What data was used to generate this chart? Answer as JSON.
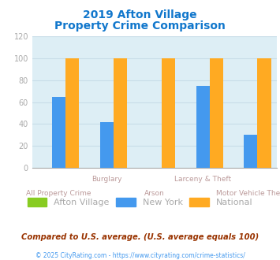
{
  "title_line1": "2019 Afton Village",
  "title_line2": "Property Crime Comparison",
  "categories": [
    "All Property Crime",
    "Burglary",
    "Arson",
    "Larceny & Theft",
    "Motor Vehicle Theft"
  ],
  "afton_village": [
    0,
    0,
    0,
    0,
    0
  ],
  "new_york": [
    65,
    42,
    0,
    75,
    30
  ],
  "national": [
    100,
    100,
    100,
    100,
    100
  ],
  "colors": {
    "afton_village": "#88cc22",
    "new_york": "#4499ee",
    "national": "#ffaa22"
  },
  "ylim": [
    0,
    120
  ],
  "yticks": [
    0,
    20,
    40,
    60,
    80,
    100,
    120
  ],
  "title_color": "#1177cc",
  "axis_bg_color": "#ddeef5",
  "fig_bg_color": "#ffffff",
  "legend_labels": [
    "Afton Village",
    "New York",
    "National"
  ],
  "footer1": "Compared to U.S. average. (U.S. average equals 100)",
  "footer2": "© 2025 CityRating.com - https://www.cityrating.com/crime-statistics/",
  "footer1_color": "#993300",
  "footer2_color": "#4499ee",
  "tick_color": "#aaaaaa",
  "xlabel_color": "#bb9999",
  "grid_color": "#c8dde8",
  "bar_width": 0.28
}
